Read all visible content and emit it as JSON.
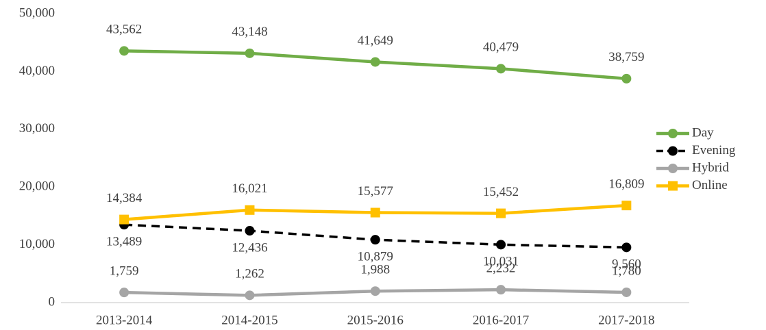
{
  "chart_data": {
    "type": "line",
    "categories": [
      "2013-2014",
      "2014-2015",
      "2015-2016",
      "2016-2017",
      "2017-2018"
    ],
    "series": [
      {
        "name": "Day",
        "color": "#70ad47",
        "marker": "circle",
        "line_style": "solid",
        "label_position": "above",
        "values": [
          43562,
          43148,
          41649,
          40479,
          38759
        ],
        "value_labels": [
          "43,562",
          "43,148",
          "41,649",
          "40,479",
          "38,759"
        ]
      },
      {
        "name": "Evening",
        "color": "#000000",
        "marker": "circle",
        "line_style": "dashed",
        "label_position": "below",
        "values": [
          13489,
          12436,
          10879,
          10031,
          9560
        ],
        "value_labels": [
          "13,489",
          "12,436",
          "10,879",
          "10,031",
          "9,560"
        ]
      },
      {
        "name": "Hybrid",
        "color": "#a5a5a5",
        "marker": "circle",
        "line_style": "solid",
        "label_position": "above",
        "values": [
          1759,
          1262,
          1988,
          2232,
          1780
        ],
        "value_labels": [
          "1,759",
          "1,262",
          "1,988",
          "2,232",
          "1,780"
        ]
      },
      {
        "name": "Online",
        "color": "#ffc000",
        "marker": "square",
        "line_style": "solid",
        "label_position": "above",
        "values": [
          14384,
          16021,
          15577,
          15452,
          16809
        ],
        "value_labels": [
          "14,384",
          "16,021",
          "15,577",
          "15,452",
          "16,809"
        ]
      }
    ],
    "ylim": [
      0,
      50000
    ],
    "yticks": [
      0,
      {
        "value": 10000,
        "label": "10,000"
      },
      {
        "value": 20000,
        "label": "20,000"
      },
      {
        "value": 30000,
        "label": "30,000"
      },
      {
        "value": 40000,
        "label": "40,000"
      },
      {
        "value": 50000,
        "label": "50,000"
      }
    ],
    "grid": false,
    "legend": "right"
  }
}
